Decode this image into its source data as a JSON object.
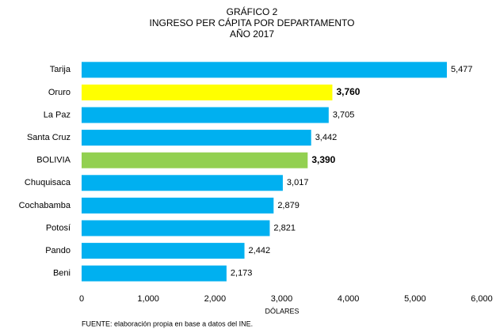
{
  "chart_data": {
    "type": "bar",
    "orientation": "horizontal",
    "title": [
      "GRÁFICO 2",
      "INGRESO PER CÁPITA POR DEPARTAMENTO",
      "AÑO 2017"
    ],
    "categories": [
      "Tarija",
      "Oruro",
      "La Paz",
      "Santa Cruz",
      "BOLIVIA",
      "Chuquisaca",
      "Cochabamba",
      "Potosí",
      "Pando",
      "Beni"
    ],
    "values": [
      5477,
      3760,
      3705,
      3442,
      3390,
      3017,
      2879,
      2821,
      2442,
      2173
    ],
    "value_labels": [
      "5,477",
      "3,760",
      "3,705",
      "3,442",
      "3,390",
      "3,017",
      "2,879",
      "2,821",
      "2,442",
      "2,173"
    ],
    "colors": [
      "#00b0f0",
      "#ffff00",
      "#00b0f0",
      "#00b0f0",
      "#92d050",
      "#00b0f0",
      "#00b0f0",
      "#00b0f0",
      "#00b0f0",
      "#00b0f0"
    ],
    "bold_labels": [
      false,
      true,
      false,
      false,
      true,
      false,
      false,
      false,
      false,
      false
    ],
    "xlim": [
      0,
      6000
    ],
    "xticks": [
      0,
      {
        "value": 1000,
        "label": "1,000"
      },
      {
        "value": 2000,
        "label": "2,000"
      },
      {
        "value": 3000,
        "label": "3,000"
      },
      {
        "value": 4000,
        "label": "4,000"
      },
      {
        "value": 5000,
        "label": "5,000"
      },
      {
        "value": 6000,
        "label": "6,000"
      }
    ],
    "xlabel": "DÓLARES",
    "source": "FUENTE: elaboración propia en base a datos del INE."
  }
}
